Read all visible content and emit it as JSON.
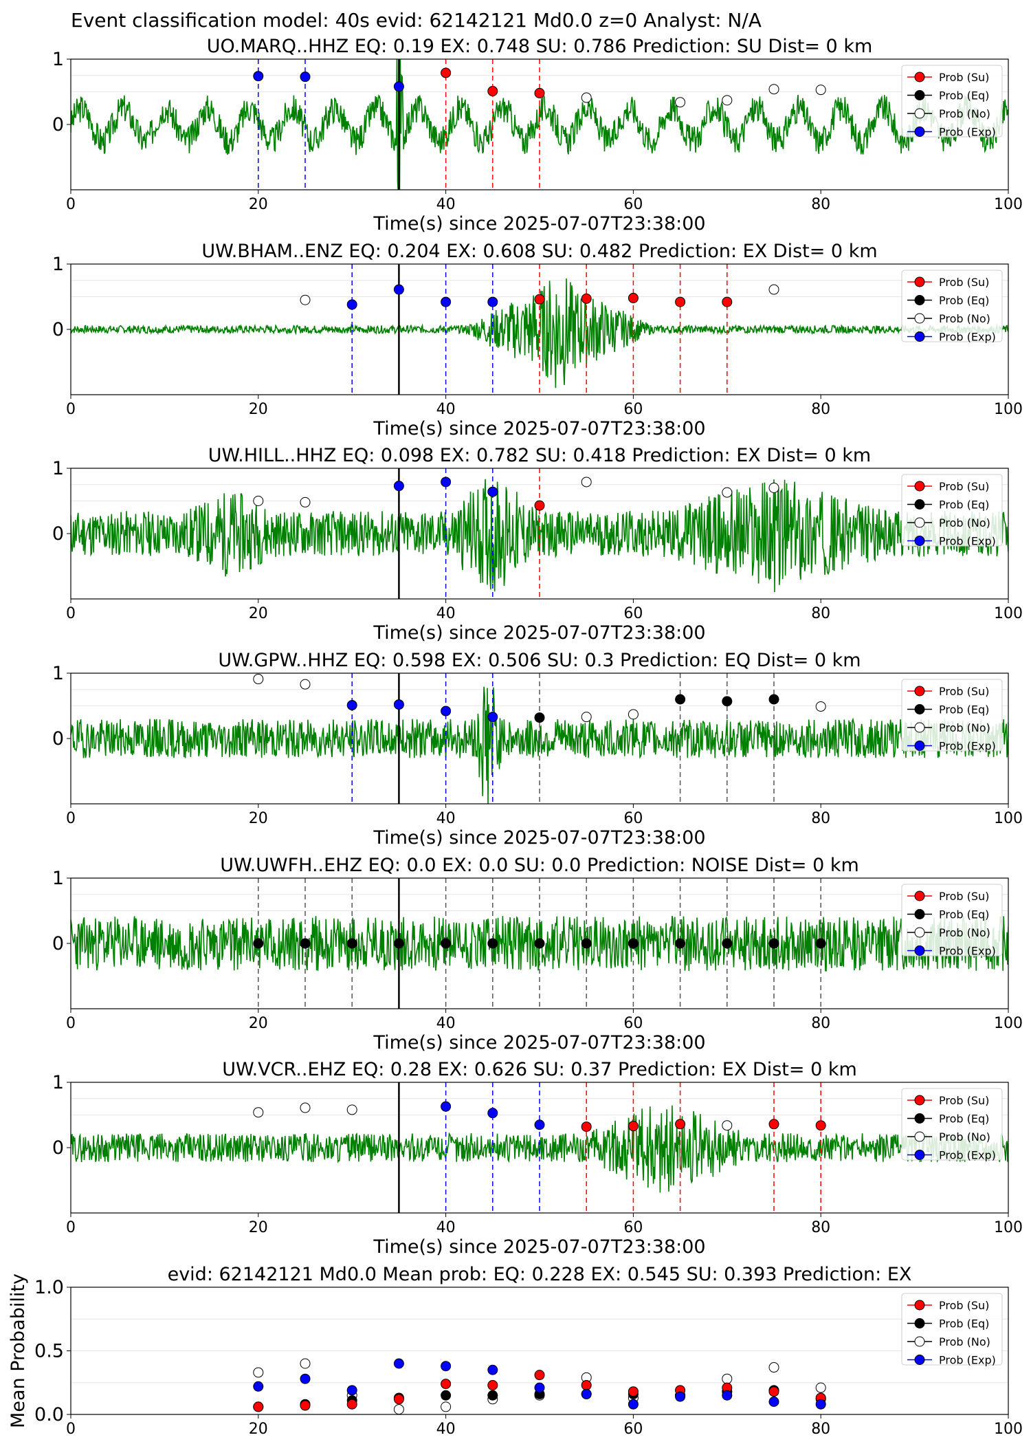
{
  "suptitle": "Event classification model: 40s evid: 62142121 Md0.0 z=0 Analyst: N/A",
  "legend": [
    "Prob (Su)",
    "Prob (Eq)",
    "Prob (No)",
    "Prob (Exp)"
  ],
  "colors": {
    "su": "#ff0000",
    "eq": "#000000",
    "no": "#ffffff",
    "exp": "#0000ff",
    "trace": "#008000"
  },
  "chart_data": [
    {
      "type": "scatter",
      "title": "UO.MARQ..HHZ   EQ: 0.19  EX: 0.748  SU: 0.786   Prediction: SU    Dist= 0 km",
      "xlabel": "Time(s) since 2025-07-07T23:38:00",
      "xlim": [
        0,
        100
      ],
      "ylim": [
        -1,
        1
      ],
      "xticks": [
        "0",
        "20",
        "40",
        "60",
        "80",
        "100"
      ],
      "yticks": [
        "0",
        "1"
      ],
      "origin_time": 35,
      "trace": {
        "amplitude": 0.25,
        "noise": 0.22,
        "period": 4.5,
        "bursts": [
          [
            34.5,
            35.5,
            4.0
          ]
        ],
        "seed": 3
      },
      "points": [
        {
          "x": 20,
          "y": 0.74,
          "class": "exp"
        },
        {
          "x": 25,
          "y": 0.73,
          "class": "exp"
        },
        {
          "x": 35,
          "y": 0.58,
          "class": "exp"
        },
        {
          "x": 40,
          "y": 0.79,
          "class": "su"
        },
        {
          "x": 45,
          "y": 0.51,
          "class": "su"
        },
        {
          "x": 50,
          "y": 0.48,
          "class": "su"
        },
        {
          "x": 55,
          "y": 0.41,
          "class": "no"
        },
        {
          "x": 65,
          "y": 0.34,
          "class": "no"
        },
        {
          "x": 70,
          "y": 0.37,
          "class": "no"
        },
        {
          "x": 75,
          "y": 0.54,
          "class": "no"
        },
        {
          "x": 80,
          "y": 0.53,
          "class": "no"
        }
      ]
    },
    {
      "type": "scatter",
      "title": "UW.BHAM..ENZ   EQ: 0.204  EX: 0.608  SU: 0.482   Prediction: EX    Dist= 0 km",
      "xlabel": "Time(s) since 2025-07-07T23:38:00",
      "xlim": [
        0,
        100
      ],
      "ylim": [
        -1,
        1
      ],
      "xticks": [
        "0",
        "20",
        "40",
        "60",
        "80",
        "100"
      ],
      "yticks": [
        "0",
        "1"
      ],
      "origin_time": 35,
      "trace": {
        "amplitude": 0.0,
        "noise": 0.06,
        "period": 3,
        "bursts": [
          [
            42,
            62,
            0.75
          ],
          [
            48,
            56,
            1.0
          ]
        ],
        "seed": 7
      },
      "points": [
        {
          "x": 25,
          "y": 0.45,
          "class": "no"
        },
        {
          "x": 30,
          "y": 0.38,
          "class": "exp"
        },
        {
          "x": 35,
          "y": 0.61,
          "class": "exp"
        },
        {
          "x": 40,
          "y": 0.42,
          "class": "exp"
        },
        {
          "x": 45,
          "y": 0.42,
          "class": "exp"
        },
        {
          "x": 50,
          "y": 0.46,
          "class": "su"
        },
        {
          "x": 55,
          "y": 0.47,
          "class": "su"
        },
        {
          "x": 60,
          "y": 0.48,
          "class": "su"
        },
        {
          "x": 65,
          "y": 0.42,
          "class": "su"
        },
        {
          "x": 70,
          "y": 0.42,
          "class": "su"
        },
        {
          "x": 75,
          "y": 0.61,
          "class": "no"
        }
      ]
    },
    {
      "type": "scatter",
      "title": "UW.HILL..HHZ   EQ: 0.098  EX: 0.782  SU: 0.418   Prediction: EX    Dist= 0 km",
      "xlabel": "Time(s) since 2025-07-07T23:38:00",
      "xlim": [
        0,
        100
      ],
      "ylim": [
        -1,
        1
      ],
      "xticks": [
        "0",
        "20",
        "40",
        "60",
        "80",
        "100"
      ],
      "yticks": [
        "0",
        "1"
      ],
      "origin_time": 35,
      "trace": {
        "amplitude": 0.0,
        "noise": 0.35,
        "period": 2,
        "bursts": [
          [
            40,
            50,
            0.6
          ],
          [
            63,
            87,
            0.55
          ],
          [
            12,
            22,
            0.35
          ]
        ],
        "seed": 11
      },
      "points": [
        {
          "x": 20,
          "y": 0.5,
          "class": "no"
        },
        {
          "x": 25,
          "y": 0.48,
          "class": "no"
        },
        {
          "x": 35,
          "y": 0.73,
          "class": "exp"
        },
        {
          "x": 40,
          "y": 0.79,
          "class": "exp"
        },
        {
          "x": 45,
          "y": 0.64,
          "class": "exp"
        },
        {
          "x": 50,
          "y": 0.43,
          "class": "su"
        },
        {
          "x": 55,
          "y": 0.79,
          "class": "no"
        },
        {
          "x": 70,
          "y": 0.63,
          "class": "no"
        },
        {
          "x": 75,
          "y": 0.7,
          "class": "no"
        }
      ]
    },
    {
      "type": "scatter",
      "title": "UW.GPW..HHZ   EQ: 0.598  EX: 0.506  SU: 0.3   Prediction: EQ    Dist= 0 km",
      "xlabel": "Time(s) since 2025-07-07T23:38:00",
      "xlim": [
        0,
        100
      ],
      "ylim": [
        -1,
        1
      ],
      "xticks": [
        "0",
        "20",
        "40",
        "60",
        "80",
        "100"
      ],
      "yticks": [
        "0",
        "1"
      ],
      "origin_time": 35,
      "trace": {
        "amplitude": 0.0,
        "noise": 0.3,
        "period": 2,
        "bursts": [
          [
            43,
            46,
            1.0
          ]
        ],
        "seed": 19
      },
      "points": [
        {
          "x": 20,
          "y": 0.91,
          "class": "no"
        },
        {
          "x": 25,
          "y": 0.83,
          "class": "no"
        },
        {
          "x": 30,
          "y": 0.51,
          "class": "exp"
        },
        {
          "x": 35,
          "y": 0.52,
          "class": "exp"
        },
        {
          "x": 40,
          "y": 0.42,
          "class": "exp"
        },
        {
          "x": 45,
          "y": 0.33,
          "class": "exp"
        },
        {
          "x": 50,
          "y": 0.32,
          "class": "eq"
        },
        {
          "x": 55,
          "y": 0.33,
          "class": "no"
        },
        {
          "x": 60,
          "y": 0.37,
          "class": "no"
        },
        {
          "x": 65,
          "y": 0.6,
          "class": "eq"
        },
        {
          "x": 70,
          "y": 0.57,
          "class": "eq"
        },
        {
          "x": 75,
          "y": 0.6,
          "class": "eq"
        },
        {
          "x": 80,
          "y": 0.49,
          "class": "no"
        }
      ]
    },
    {
      "type": "scatter",
      "title": "UW.UWFH..EHZ   EQ: 0.0  EX: 0.0  SU: 0.0   Prediction: NOISE    Dist= 0 km",
      "xlabel": "Time(s) since 2025-07-07T23:38:00",
      "xlim": [
        0,
        100
      ],
      "ylim": [
        -1,
        1
      ],
      "xticks": [
        "0",
        "20",
        "40",
        "60",
        "80",
        "100"
      ],
      "yticks": [
        "0",
        "1"
      ],
      "origin_time": 35,
      "trace": {
        "amplitude": 0.0,
        "noise": 0.42,
        "period": 2,
        "bursts": [],
        "seed": 23
      },
      "points": [
        {
          "x": 20,
          "y": 0.0,
          "class": "eq"
        },
        {
          "x": 25,
          "y": 0.0,
          "class": "eq"
        },
        {
          "x": 30,
          "y": 0.0,
          "class": "eq"
        },
        {
          "x": 35,
          "y": 0.0,
          "class": "eq"
        },
        {
          "x": 40,
          "y": 0.0,
          "class": "eq"
        },
        {
          "x": 45,
          "y": 0.0,
          "class": "eq"
        },
        {
          "x": 50,
          "y": 0.0,
          "class": "eq"
        },
        {
          "x": 55,
          "y": 0.0,
          "class": "eq"
        },
        {
          "x": 60,
          "y": 0.0,
          "class": "eq"
        },
        {
          "x": 65,
          "y": 0.0,
          "class": "eq"
        },
        {
          "x": 70,
          "y": 0.0,
          "class": "eq"
        },
        {
          "x": 75,
          "y": 0.0,
          "class": "eq"
        },
        {
          "x": 80,
          "y": 0.0,
          "class": "eq"
        }
      ]
    },
    {
      "type": "scatter",
      "title": "UW.VCR..EHZ   EQ: 0.28  EX: 0.626  SU: 0.37   Prediction: EX    Dist= 0 km",
      "xlabel": "Time(s) since 2025-07-07T23:38:00",
      "xlim": [
        0,
        100
      ],
      "ylim": [
        -1,
        1
      ],
      "xticks": [
        "0",
        "20",
        "40",
        "60",
        "80",
        "100"
      ],
      "yticks": [
        "0",
        "1"
      ],
      "origin_time": 35,
      "trace": {
        "amplitude": 0.0,
        "noise": 0.22,
        "period": 2,
        "bursts": [
          [
            55,
            72,
            0.55
          ]
        ],
        "seed": 29
      },
      "points": [
        {
          "x": 20,
          "y": 0.54,
          "class": "no"
        },
        {
          "x": 25,
          "y": 0.61,
          "class": "no"
        },
        {
          "x": 30,
          "y": 0.58,
          "class": "no"
        },
        {
          "x": 40,
          "y": 0.63,
          "class": "exp"
        },
        {
          "x": 45,
          "y": 0.53,
          "class": "exp"
        },
        {
          "x": 50,
          "y": 0.35,
          "class": "exp"
        },
        {
          "x": 55,
          "y": 0.32,
          "class": "su"
        },
        {
          "x": 60,
          "y": 0.33,
          "class": "su"
        },
        {
          "x": 65,
          "y": 0.36,
          "class": "su"
        },
        {
          "x": 70,
          "y": 0.34,
          "class": "no"
        },
        {
          "x": 75,
          "y": 0.36,
          "class": "su"
        },
        {
          "x": 80,
          "y": 0.34,
          "class": "su"
        }
      ]
    },
    {
      "type": "scatter",
      "title": "evid: 62142121  Md0.0   Mean prob:   EQ: 0.228  EX: 0.545  SU: 0.393   Prediction: EX",
      "xlabel": "",
      "ylabel": "Mean Probability",
      "xlim": [
        0,
        100
      ],
      "ylim": [
        0,
        1.0
      ],
      "xticks": [
        "0",
        "20",
        "40",
        "60",
        "80",
        "100"
      ],
      "yticks": [
        "0.0",
        "0.5",
        "1.0"
      ],
      "series": [
        {
          "name": "Prob (No)",
          "class": "no",
          "x": [
            20,
            25,
            30,
            35,
            40,
            45,
            50,
            55,
            60,
            65,
            70,
            75,
            80
          ],
          "values": [
            0.33,
            0.4,
            0.15,
            0.04,
            0.06,
            0.12,
            0.15,
            0.29,
            0.13,
            0.15,
            0.28,
            0.37,
            0.21
          ]
        },
        {
          "name": "Prob (Eq)",
          "class": "eq",
          "x": [
            20,
            25,
            30,
            35,
            40,
            45,
            50,
            55,
            60,
            65,
            70,
            75,
            80
          ],
          "values": [
            0.06,
            0.08,
            0.11,
            0.13,
            0.15,
            0.15,
            0.16,
            0.16,
            0.16,
            0.15,
            0.18,
            0.19,
            0.12
          ]
        },
        {
          "name": "Prob (Su)",
          "class": "su",
          "x": [
            20,
            25,
            30,
            35,
            40,
            45,
            50,
            55,
            60,
            65,
            70,
            75,
            80
          ],
          "values": [
            0.06,
            0.07,
            0.08,
            0.12,
            0.24,
            0.23,
            0.31,
            0.23,
            0.18,
            0.19,
            0.21,
            0.18,
            0.13
          ]
        },
        {
          "name": "Prob (Exp)",
          "class": "exp",
          "x": [
            20,
            25,
            30,
            35,
            40,
            45,
            50,
            55,
            60,
            65,
            70,
            75,
            80
          ],
          "values": [
            0.22,
            0.28,
            0.19,
            0.4,
            0.38,
            0.35,
            0.21,
            0.16,
            0.08,
            0.14,
            0.15,
            0.1,
            0.08
          ]
        }
      ]
    }
  ]
}
